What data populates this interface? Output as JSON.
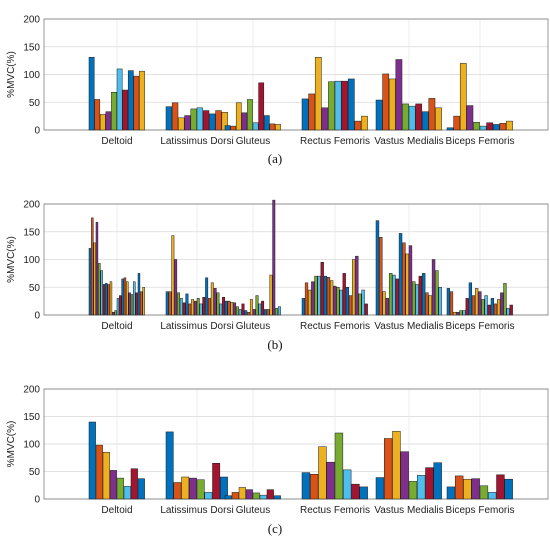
{
  "figure": {
    "panel_labels": [
      "(a)",
      "(b)",
      "(c)"
    ]
  },
  "colors": [
    "#0072BD",
    "#D95319",
    "#EDB120",
    "#7E2F8E",
    "#77AC30",
    "#4DBEEE",
    "#A2142F"
  ],
  "chart_data": [
    {
      "type": "bar",
      "panel": "(a)",
      "ylabel": "%MVC(%)",
      "ylim": [
        0,
        200
      ],
      "yticks": [
        0,
        50,
        100,
        150,
        200
      ],
      "grid": true,
      "categories": [
        "Deltoid",
        "Latissimus Dorsi",
        "Gluteus",
        "Rectus Femoris",
        "Vastus Medialis",
        "Biceps Femoris"
      ],
      "groups": [
        [
          131,
          55,
          28,
          33,
          68,
          110,
          72,
          107,
          97,
          106
        ],
        [
          42,
          49,
          22,
          26,
          38,
          40,
          35,
          29,
          35,
          32
        ],
        [
          8,
          7,
          49,
          31,
          55,
          13,
          85,
          26,
          11,
          10
        ],
        [
          56,
          65,
          131,
          40,
          87,
          88,
          88,
          92,
          16,
          25
        ],
        [
          54,
          101,
          92,
          127,
          47,
          43,
          47,
          33,
          57,
          40
        ],
        [
          4,
          25,
          120,
          44,
          14,
          7,
          13,
          10,
          12,
          16
        ]
      ]
    },
    {
      "type": "bar",
      "panel": "(b)",
      "ylabel": "%MVC(%)",
      "ylim": [
        0,
        200
      ],
      "yticks": [
        0,
        50,
        100,
        150,
        200
      ],
      "grid": true,
      "categories": [
        "Deltoid",
        "Latissimus Dorsi",
        "Gluteus",
        "Rectus Femoris",
        "Vastus Medialis",
        "Biceps Femoris"
      ],
      "groups": [
        [
          120,
          175,
          130,
          167,
          93,
          80,
          55,
          57,
          55,
          60,
          5,
          8,
          30,
          35,
          65,
          67,
          60,
          40,
          37,
          60,
          40,
          75,
          42,
          50
        ],
        [
          42,
          42,
          143,
          100,
          40,
          30,
          22,
          38,
          20,
          28,
          25,
          30,
          20,
          32,
          67,
          30,
          58,
          48,
          40,
          20,
          32,
          15
        ],
        [
          25,
          25,
          23,
          22,
          15,
          10,
          20,
          8,
          5,
          28,
          10,
          35,
          20,
          25,
          10,
          10,
          72,
          207,
          12,
          15
        ],
        [
          30,
          58,
          45,
          60,
          70,
          70,
          95,
          70,
          68,
          62,
          52,
          50,
          45,
          75,
          50,
          35,
          100,
          106,
          38,
          45,
          20
        ],
        [
          170,
          140,
          42,
          30,
          75,
          72,
          65,
          147,
          130,
          110,
          125,
          60,
          55,
          70,
          75,
          40,
          35,
          100,
          80,
          50
        ],
        [
          48,
          42,
          5,
          5,
          8,
          8,
          30,
          58,
          35,
          48,
          42,
          28,
          35,
          18,
          30,
          20,
          28,
          40,
          57,
          12,
          18
        ]
      ]
    },
    {
      "type": "bar",
      "panel": "(c)",
      "ylabel": "%MVC(%)",
      "ylim": [
        0,
        200
      ],
      "yticks": [
        0,
        50,
        100,
        150,
        200
      ],
      "grid": true,
      "categories": [
        "Deltoid",
        "Latissimus Dorsi",
        "Gluteus",
        "Rectus Femoris",
        "Vastus Medialis",
        "Biceps Femoris"
      ],
      "groups": [
        [
          140,
          98,
          85,
          52,
          38,
          23,
          55,
          37
        ],
        [
          122,
          30,
          40,
          38,
          35,
          12,
          65,
          40
        ],
        [
          6,
          12,
          21,
          17,
          11,
          7,
          17,
          6
        ],
        [
          48,
          45,
          95,
          67,
          120,
          53,
          27,
          22
        ],
        [
          39,
          110,
          123,
          86,
          32,
          43,
          57,
          66
        ],
        [
          22,
          42,
          36,
          37,
          24,
          12,
          44,
          36
        ]
      ]
    }
  ]
}
